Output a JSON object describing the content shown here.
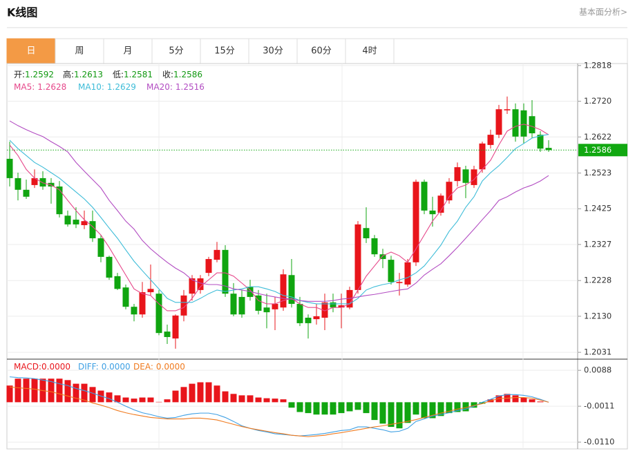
{
  "header": {
    "title": "K线图",
    "link": "基本面分析>"
  },
  "tabs": {
    "items": [
      "日",
      "周",
      "月",
      "5分",
      "15分",
      "30分",
      "60分",
      "4时"
    ],
    "active": 0
  },
  "chart_data": [
    {
      "type": "candlestick",
      "ohlc_legend": [
        {
          "label": "开:",
          "value": 1.2592
        },
        {
          "label": "高:",
          "value": 1.2613
        },
        {
          "label": "低:",
          "value": 1.2581
        },
        {
          "label": "收:",
          "value": 1.2586
        }
      ],
      "legend_value_color": "#119911",
      "up_color": "#e8151b",
      "down_color": "#10a510",
      "open": [
        1.2562,
        1.2509,
        1.2477,
        1.249,
        1.2509,
        1.2496,
        1.2486,
        1.2406,
        1.2395,
        1.238,
        1.2391,
        1.2344,
        1.2293,
        1.224,
        1.2209,
        1.2156,
        1.2135,
        1.2196,
        1.2192,
        1.2088,
        1.2069,
        1.2132,
        1.2192,
        1.2202,
        1.2249,
        1.2285,
        1.2312,
        1.2192,
        1.2183,
        1.2211,
        1.2187,
        1.2154,
        1.2149,
        1.2154,
        1.2243,
        1.2164,
        1.2126,
        1.2122,
        1.2126,
        1.2168,
        1.2154,
        1.2154,
        1.2202,
        1.2372,
        1.2344,
        1.23,
        1.2285,
        1.2221,
        1.2217,
        1.2278,
        1.2499,
        1.242,
        1.2414,
        1.2448,
        1.2501,
        1.2533,
        1.249,
        1.2533,
        1.26,
        1.2628,
        1.2695,
        1.2698,
        1.2695,
        1.2679,
        1.2628,
        1.2592
      ],
      "high": [
        1.2609,
        1.2524,
        1.2505,
        1.2533,
        1.2528,
        1.2509,
        1.2501,
        1.242,
        1.2429,
        1.242,
        1.242,
        1.2353,
        1.2296,
        1.2249,
        1.2217,
        1.2164,
        1.2224,
        1.2272,
        1.2202,
        1.2107,
        1.2135,
        1.2202,
        1.2243,
        1.2243,
        1.2293,
        1.2334,
        1.2325,
        1.2221,
        1.2202,
        1.223,
        1.2202,
        1.2192,
        1.2183,
        1.2259,
        1.2287,
        1.2183,
        1.2135,
        1.2164,
        1.2192,
        1.2192,
        1.2192,
        1.2211,
        1.2391,
        1.2429,
        1.2353,
        1.2315,
        1.2296,
        1.2249,
        1.2287,
        1.2505,
        1.2505,
        1.2458,
        1.2467,
        1.2509,
        1.2552,
        1.2543,
        1.2543,
        1.2609,
        1.2642,
        1.271,
        1.2733,
        1.2714,
        1.2714,
        1.2723,
        1.2638,
        1.2613
      ],
      "low": [
        1.2486,
        1.2448,
        1.2452,
        1.2482,
        1.2477,
        1.2439,
        1.2401,
        1.2376,
        1.2372,
        1.2369,
        1.2334,
        1.2278,
        1.223,
        1.2202,
        1.2149,
        1.2116,
        1.2126,
        1.2187,
        1.2078,
        1.2054,
        1.2041,
        1.2116,
        1.2173,
        1.2192,
        1.224,
        1.2278,
        1.2183,
        1.213,
        1.2126,
        1.2173,
        1.2135,
        1.2097,
        1.2092,
        1.2145,
        1.2154,
        1.2103,
        1.2069,
        1.2107,
        1.2092,
        1.2141,
        1.2097,
        1.2149,
        1.2192,
        1.2331,
        1.2293,
        1.2262,
        1.2217,
        1.2187,
        1.2211,
        1.2268,
        1.241,
        1.2376,
        1.2406,
        1.2439,
        1.2486,
        1.2454,
        1.2482,
        1.2524,
        1.259,
        1.2619,
        1.2685,
        1.2609,
        1.2604,
        1.2619,
        1.2581,
        1.2581
      ],
      "close": [
        1.2509,
        1.2477,
        1.2458,
        1.2509,
        1.2486,
        1.2486,
        1.241,
        1.2382,
        1.2382,
        1.2391,
        1.2344,
        1.2293,
        1.2236,
        1.2205,
        1.2156,
        1.2135,
        1.2196,
        1.2205,
        1.2084,
        1.2073,
        1.2132,
        1.2187,
        1.2234,
        1.2234,
        1.2287,
        1.2312,
        1.2192,
        1.2135,
        1.2135,
        1.2183,
        1.2145,
        1.2141,
        1.2164,
        1.2245,
        1.2164,
        1.2111,
        1.2111,
        1.213,
        1.2168,
        1.2154,
        1.216,
        1.2202,
        1.2382,
        1.2344,
        1.23,
        1.2287,
        1.2224,
        1.2224,
        1.2278,
        1.2499,
        1.242,
        1.241,
        1.2461,
        1.2499,
        1.2539,
        1.2496,
        1.2533,
        1.2604,
        1.2628,
        1.2698,
        1.2698,
        1.2623,
        1.2623,
        1.2632,
        1.259,
        1.2586
      ],
      "series": [
        {
          "label": "MA5:",
          "value": 1.2628,
          "color": "#e6478a",
          "values": [
            1.26,
            1.2571,
            1.2533,
            1.2509,
            1.2496,
            1.249,
            1.2477,
            1.2448,
            1.242,
            1.2395,
            1.2376,
            1.2353,
            1.2319,
            1.2281,
            1.2243,
            1.2205,
            1.2192,
            1.2187,
            1.2164,
            1.2145,
            1.2145,
            1.2154,
            1.2179,
            1.2211,
            1.223,
            1.2249,
            1.2249,
            1.224,
            1.2221,
            1.2202,
            1.2173,
            1.2164,
            1.2164,
            1.2173,
            1.2179,
            1.2164,
            1.2154,
            1.2154,
            1.2145,
            1.2154,
            1.2154,
            1.2164,
            1.2202,
            1.224,
            1.2268,
            1.2296,
            1.2306,
            1.2296,
            1.2278,
            1.2315,
            1.2353,
            1.2391,
            1.242,
            1.2458,
            1.2482,
            1.249,
            1.2505,
            1.2533,
            1.2558,
            1.26,
            1.2638,
            1.2651,
            1.2657,
            1.2651,
            1.2642,
            1.2628
          ]
        },
        {
          "label": "MA10:",
          "value": 1.2629,
          "color": "#3dbcd8",
          "values": [
            1.2613,
            1.259,
            1.2571,
            1.2552,
            1.2539,
            1.2524,
            1.2509,
            1.249,
            1.2471,
            1.2452,
            1.2429,
            1.2401,
            1.2372,
            1.2344,
            1.2312,
            1.2281,
            1.2255,
            1.223,
            1.2205,
            1.2179,
            1.2168,
            1.2168,
            1.2168,
            1.2179,
            1.2192,
            1.2202,
            1.2198,
            1.2202,
            1.2205,
            1.2211,
            1.2211,
            1.2205,
            1.2198,
            1.2187,
            1.2183,
            1.2173,
            1.2168,
            1.2164,
            1.2164,
            1.2164,
            1.2164,
            1.2164,
            1.2179,
            1.2202,
            1.2211,
            1.2217,
            1.2221,
            1.223,
            1.2236,
            1.2249,
            1.2268,
            1.2296,
            1.2325,
            1.2363,
            1.2391,
            1.2429,
            1.2458,
            1.2501,
            1.2524,
            1.2543,
            1.2566,
            1.259,
            1.2604,
            1.2619,
            1.2625,
            1.2629
          ]
        },
        {
          "label": "MA20:",
          "value": 1.2516,
          "color": "#b24cc2",
          "values": [
            1.2666,
            1.2653,
            1.2642,
            1.2632,
            1.2623,
            1.2609,
            1.2596,
            1.2581,
            1.2552,
            1.2528,
            1.2505,
            1.2482,
            1.2448,
            1.242,
            1.2391,
            1.2369,
            1.2338,
            1.2315,
            1.2296,
            1.2278,
            1.2262,
            1.2249,
            1.223,
            1.2221,
            1.2217,
            1.2217,
            1.2213,
            1.2205,
            1.2202,
            1.2198,
            1.2192,
            1.2187,
            1.2183,
            1.2179,
            1.2177,
            1.2173,
            1.2171,
            1.2171,
            1.2171,
            1.2173,
            1.2177,
            1.2179,
            1.2183,
            1.2187,
            1.219,
            1.2194,
            1.2198,
            1.2202,
            1.2205,
            1.2221,
            1.2243,
            1.2259,
            1.2274,
            1.2296,
            1.2319,
            1.2344,
            1.2369,
            1.2395,
            1.242,
            1.2448,
            1.2458,
            1.2471,
            1.2482,
            1.249,
            1.2501,
            1.2516
          ]
        }
      ],
      "last_price": 1.2586,
      "last_price_color": "#11a811",
      "ylim": [
        1.2018,
        1.2831
      ],
      "yticks": [
        1.2818,
        {
          "value": 1.272,
          "label": "1.2720"
        },
        1.2622,
        1.2523,
        1.2425,
        1.2327,
        1.2228,
        {
          "value": 1.213,
          "label": "1.2130"
        },
        1.2031
      ],
      "grid": true
    },
    {
      "type": "macd",
      "histogram": {
        "label": "MACD:",
        "value": 0,
        "value_label": "0.0000",
        "color": "#e8151b",
        "up_color": "#e8151b",
        "down_color": "#10a510",
        "values": [
          0.0046,
          0.0065,
          0.0065,
          0.0065,
          0.0065,
          0.0065,
          0.0065,
          0.0061,
          0.0051,
          0.0051,
          0.0042,
          0.0032,
          0.0027,
          0.0019,
          0.0013,
          0.001,
          0.0013,
          0.0013,
          0.0001,
          0.0008,
          0.0032,
          0.0042,
          0.0051,
          0.0055,
          0.0055,
          0.0046,
          0.003,
          0.0023,
          0.0019,
          0.0019,
          0.0013,
          0.0011,
          0.001,
          0.0008,
          -0.0015,
          -0.0027,
          -0.003,
          -0.0034,
          -0.0034,
          -0.0034,
          -0.003,
          -0.0025,
          -0.0021,
          -0.003,
          -0.0049,
          -0.0059,
          -0.0068,
          -0.0072,
          -0.0057,
          -0.0034,
          -0.0044,
          -0.0044,
          -0.0038,
          -0.003,
          -0.0027,
          -0.0025,
          -0.0015,
          -0.0004,
          0.0008,
          0.0019,
          0.0023,
          0.0019,
          0.0013,
          0.0008,
          0.0002,
          0
        ]
      },
      "series": [
        {
          "label": "DIFF:",
          "value": 0,
          "value_label": "0.0000",
          "color": "#3d9fe3",
          "values": [
            0.007,
            0.0068,
            0.0067,
            0.0065,
            0.0061,
            0.0057,
            0.0051,
            0.0046,
            0.0038,
            0.0032,
            0.0025,
            0.0017,
            0.001,
            0,
            -0.0011,
            -0.0021,
            -0.0029,
            -0.0034,
            -0.004,
            -0.0044,
            -0.0042,
            -0.0036,
            -0.0032,
            -0.003,
            -0.003,
            -0.0034,
            -0.0042,
            -0.0053,
            -0.0065,
            -0.0072,
            -0.0078,
            -0.0082,
            -0.0087,
            -0.0089,
            -0.0091,
            -0.0093,
            -0.0091,
            -0.0089,
            -0.0086,
            -0.0082,
            -0.0078,
            -0.0076,
            -0.0068,
            -0.0068,
            -0.0072,
            -0.0076,
            -0.0082,
            -0.008,
            -0.0072,
            -0.0053,
            -0.0046,
            -0.0038,
            -0.0034,
            -0.0029,
            -0.0023,
            -0.0019,
            -0.0011,
            0,
            0.0008,
            0.0017,
            0.0021,
            0.0021,
            0.0019,
            0.0015,
            0.0008,
            0
          ]
        },
        {
          "label": "DEA:",
          "value": 0,
          "value_label": "0.0000",
          "color": "#f07a1e",
          "values": [
            0.0042,
            0.004,
            0.0038,
            0.0036,
            0.0032,
            0.0029,
            0.0023,
            0.0017,
            0.0011,
            0.0006,
            -0.0002,
            -0.0008,
            -0.0015,
            -0.0023,
            -0.0029,
            -0.0034,
            -0.0038,
            -0.0042,
            -0.0044,
            -0.0046,
            -0.0046,
            -0.0046,
            -0.0044,
            -0.0044,
            -0.0046,
            -0.0049,
            -0.0055,
            -0.0061,
            -0.0067,
            -0.0072,
            -0.0076,
            -0.008,
            -0.0084,
            -0.0087,
            -0.0091,
            -0.0093,
            -0.0095,
            -0.0093,
            -0.0091,
            -0.0087,
            -0.0084,
            -0.008,
            -0.0076,
            -0.0072,
            -0.0068,
            -0.0065,
            -0.0061,
            -0.0057,
            -0.0053,
            -0.0048,
            -0.0042,
            -0.0036,
            -0.003,
            -0.0025,
            -0.0019,
            -0.0015,
            -0.0009,
            -0.0004,
            0.0004,
            0.001,
            0.0011,
            0.0013,
            0.0013,
            0.0011,
            0.0006,
            0
          ]
        }
      ],
      "ylim": [
        -0.0125,
        0.0115
      ],
      "yticks": [
        0.0088,
        -0.0011,
        {
          "value": -0.011,
          "label": "-0.0110"
        }
      ],
      "grid": true
    }
  ]
}
